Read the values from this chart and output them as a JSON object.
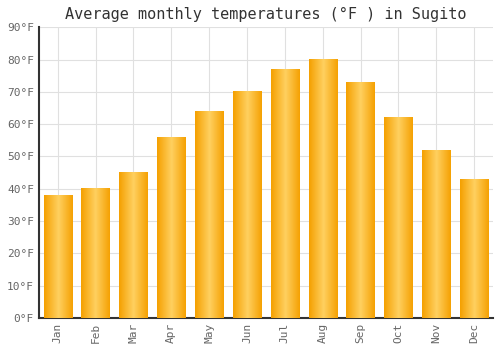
{
  "title": "Average monthly temperatures (°F ) in Sugito",
  "months": [
    "Jan",
    "Feb",
    "Mar",
    "Apr",
    "May",
    "Jun",
    "Jul",
    "Aug",
    "Sep",
    "Oct",
    "Nov",
    "Dec"
  ],
  "values": [
    38,
    40,
    45,
    56,
    64,
    70,
    77,
    80,
    73,
    62,
    52,
    43
  ],
  "bar_color_center": "#FFD060",
  "bar_color_edge": "#F5A000",
  "ylim": [
    0,
    90
  ],
  "yticks": [
    0,
    10,
    20,
    30,
    40,
    50,
    60,
    70,
    80,
    90
  ],
  "ytick_labels": [
    "0°F",
    "10°F",
    "20°F",
    "30°F",
    "40°F",
    "50°F",
    "60°F",
    "70°F",
    "80°F",
    "90°F"
  ],
  "background_color": "#ffffff",
  "grid_color": "#e0e0e0",
  "title_fontsize": 11,
  "tick_fontsize": 8,
  "bar_width": 0.75
}
